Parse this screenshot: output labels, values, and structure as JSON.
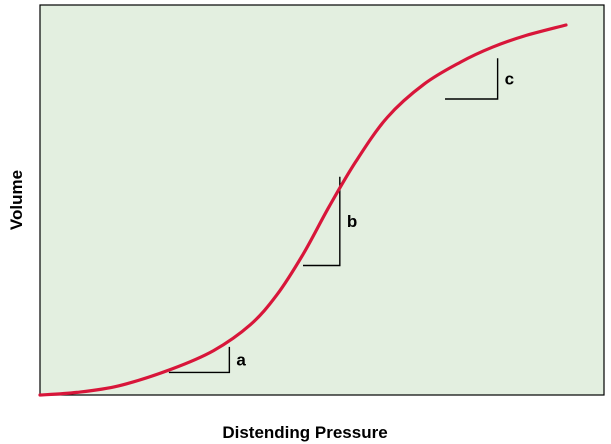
{
  "chart_data": {
    "type": "line",
    "title": "",
    "xlabel": "Distending Pressure",
    "ylabel": "Volume",
    "grid": false,
    "legend": "none",
    "colors": {
      "plot_bg": "#e3efe0",
      "curve": "#d8163a",
      "frame": "#000000"
    },
    "series": [
      {
        "values": [
          [
            0,
            0
          ],
          [
            0.07,
            0.007
          ],
          [
            0.15,
            0.025
          ],
          [
            0.25,
            0.07
          ],
          [
            0.33,
            0.12
          ],
          [
            0.4,
            0.19
          ],
          [
            0.45,
            0.27
          ],
          [
            0.5,
            0.38
          ],
          [
            0.55,
            0.51
          ],
          [
            0.6,
            0.63
          ],
          [
            0.66,
            0.75
          ],
          [
            0.73,
            0.84
          ],
          [
            0.8,
            0.9
          ],
          [
            0.86,
            0.94
          ],
          [
            0.92,
            0.97
          ],
          [
            1.0,
            1.0
          ]
        ]
      }
    ],
    "annotations": [
      {
        "label": "a",
        "x1": 0.245,
        "x2": 0.36,
        "y1": 0.061,
        "y2": 0.13
      },
      {
        "label": "b",
        "x1": 0.5,
        "x2": 0.57,
        "y1": 0.35,
        "y2": 0.59
      },
      {
        "label": "c",
        "x1": 0.77,
        "x2": 0.87,
        "y1": 0.8,
        "y2": 0.91
      }
    ]
  }
}
